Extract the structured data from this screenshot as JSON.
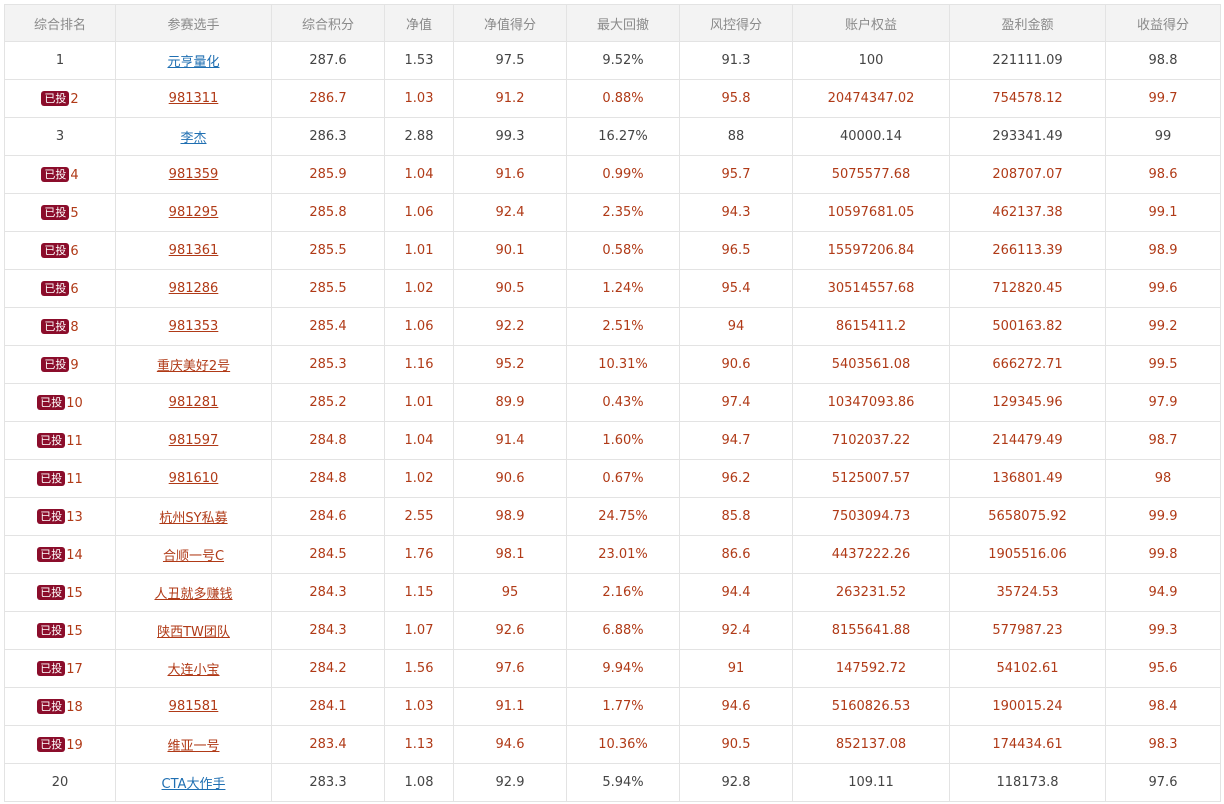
{
  "colors": {
    "header_bg": "#f3f3f3",
    "header_text": "#8a8a8a",
    "invested_text": "#b03a17",
    "badge_bg": "#8b0d2b",
    "link_blue": "#1f6fb2",
    "border": "#e3e3e3"
  },
  "table": {
    "headers": [
      "综合排名",
      "参赛选手",
      "综合积分",
      "净值",
      "净值得分",
      "最大回撤",
      "风控得分",
      "账户权益",
      "盈利金额",
      "收益得分"
    ],
    "rows": [
      {
        "badge": "",
        "rank": "1",
        "name": "元亨量化",
        "score": "287.6",
        "nav": "1.53",
        "nav_score": "97.5",
        "max_drawdown": "9.52%",
        "risk_score": "91.3",
        "equity": "100",
        "profit": "221111.09",
        "return_score": "98.8"
      },
      {
        "badge": "已投",
        "rank": "2",
        "name": "981311",
        "score": "286.7",
        "nav": "1.03",
        "nav_score": "91.2",
        "max_drawdown": "0.88%",
        "risk_score": "95.8",
        "equity": "20474347.02",
        "profit": "754578.12",
        "return_score": "99.7"
      },
      {
        "badge": "",
        "rank": "3",
        "name": "李杰",
        "score": "286.3",
        "nav": "2.88",
        "nav_score": "99.3",
        "max_drawdown": "16.27%",
        "risk_score": "88",
        "equity": "40000.14",
        "profit": "293341.49",
        "return_score": "99"
      },
      {
        "badge": "已投",
        "rank": "4",
        "name": "981359",
        "score": "285.9",
        "nav": "1.04",
        "nav_score": "91.6",
        "max_drawdown": "0.99%",
        "risk_score": "95.7",
        "equity": "5075577.68",
        "profit": "208707.07",
        "return_score": "98.6"
      },
      {
        "badge": "已投",
        "rank": "5",
        "name": "981295",
        "score": "285.8",
        "nav": "1.06",
        "nav_score": "92.4",
        "max_drawdown": "2.35%",
        "risk_score": "94.3",
        "equity": "10597681.05",
        "profit": "462137.38",
        "return_score": "99.1"
      },
      {
        "badge": "已投",
        "rank": "6",
        "name": "981361",
        "score": "285.5",
        "nav": "1.01",
        "nav_score": "90.1",
        "max_drawdown": "0.58%",
        "risk_score": "96.5",
        "equity": "15597206.84",
        "profit": "266113.39",
        "return_score": "98.9"
      },
      {
        "badge": "已投",
        "rank": "6",
        "name": "981286",
        "score": "285.5",
        "nav": "1.02",
        "nav_score": "90.5",
        "max_drawdown": "1.24%",
        "risk_score": "95.4",
        "equity": "30514557.68",
        "profit": "712820.45",
        "return_score": "99.6"
      },
      {
        "badge": "已投",
        "rank": "8",
        "name": "981353",
        "score": "285.4",
        "nav": "1.06",
        "nav_score": "92.2",
        "max_drawdown": "2.51%",
        "risk_score": "94",
        "equity": "8615411.2",
        "profit": "500163.82",
        "return_score": "99.2"
      },
      {
        "badge": "已投",
        "rank": "9",
        "name": "重庆美好2号",
        "score": "285.3",
        "nav": "1.16",
        "nav_score": "95.2",
        "max_drawdown": "10.31%",
        "risk_score": "90.6",
        "equity": "5403561.08",
        "profit": "666272.71",
        "return_score": "99.5"
      },
      {
        "badge": "已投",
        "rank": "10",
        "name": "981281",
        "score": "285.2",
        "nav": "1.01",
        "nav_score": "89.9",
        "max_drawdown": "0.43%",
        "risk_score": "97.4",
        "equity": "10347093.86",
        "profit": "129345.96",
        "return_score": "97.9"
      },
      {
        "badge": "已投",
        "rank": "11",
        "name": "981597",
        "score": "284.8",
        "nav": "1.04",
        "nav_score": "91.4",
        "max_drawdown": "1.60%",
        "risk_score": "94.7",
        "equity": "7102037.22",
        "profit": "214479.49",
        "return_score": "98.7"
      },
      {
        "badge": "已投",
        "rank": "11",
        "name": "981610",
        "score": "284.8",
        "nav": "1.02",
        "nav_score": "90.6",
        "max_drawdown": "0.67%",
        "risk_score": "96.2",
        "equity": "5125007.57",
        "profit": "136801.49",
        "return_score": "98"
      },
      {
        "badge": "已投",
        "rank": "13",
        "name": "杭州SY私募",
        "score": "284.6",
        "nav": "2.55",
        "nav_score": "98.9",
        "max_drawdown": "24.75%",
        "risk_score": "85.8",
        "equity": "7503094.73",
        "profit": "5658075.92",
        "return_score": "99.9"
      },
      {
        "badge": "已投",
        "rank": "14",
        "name": "合顺一号C",
        "score": "284.5",
        "nav": "1.76",
        "nav_score": "98.1",
        "max_drawdown": "23.01%",
        "risk_score": "86.6",
        "equity": "4437222.26",
        "profit": "1905516.06",
        "return_score": "99.8"
      },
      {
        "badge": "已投",
        "rank": "15",
        "name": "人丑就多赚钱",
        "score": "284.3",
        "nav": "1.15",
        "nav_score": "95",
        "max_drawdown": "2.16%",
        "risk_score": "94.4",
        "equity": "263231.52",
        "profit": "35724.53",
        "return_score": "94.9"
      },
      {
        "badge": "已投",
        "rank": "15",
        "name": "陕西TW团队",
        "score": "284.3",
        "nav": "1.07",
        "nav_score": "92.6",
        "max_drawdown": "6.88%",
        "risk_score": "92.4",
        "equity": "8155641.88",
        "profit": "577987.23",
        "return_score": "99.3"
      },
      {
        "badge": "已投",
        "rank": "17",
        "name": "大连小宝",
        "score": "284.2",
        "nav": "1.56",
        "nav_score": "97.6",
        "max_drawdown": "9.94%",
        "risk_score": "91",
        "equity": "147592.72",
        "profit": "54102.61",
        "return_score": "95.6"
      },
      {
        "badge": "已投",
        "rank": "18",
        "name": "981581",
        "score": "284.1",
        "nav": "1.03",
        "nav_score": "91.1",
        "max_drawdown": "1.77%",
        "risk_score": "94.6",
        "equity": "5160826.53",
        "profit": "190015.24",
        "return_score": "98.4"
      },
      {
        "badge": "已投",
        "rank": "19",
        "name": "维亚一号",
        "score": "283.4",
        "nav": "1.13",
        "nav_score": "94.6",
        "max_drawdown": "10.36%",
        "risk_score": "90.5",
        "equity": "852137.08",
        "profit": "174434.61",
        "return_score": "98.3"
      },
      {
        "badge": "",
        "rank": "20",
        "name": "CTA大作手",
        "score": "283.3",
        "nav": "1.08",
        "nav_score": "92.9",
        "max_drawdown": "5.94%",
        "risk_score": "92.8",
        "equity": "109.11",
        "profit": "118173.8",
        "return_score": "97.6"
      }
    ]
  }
}
